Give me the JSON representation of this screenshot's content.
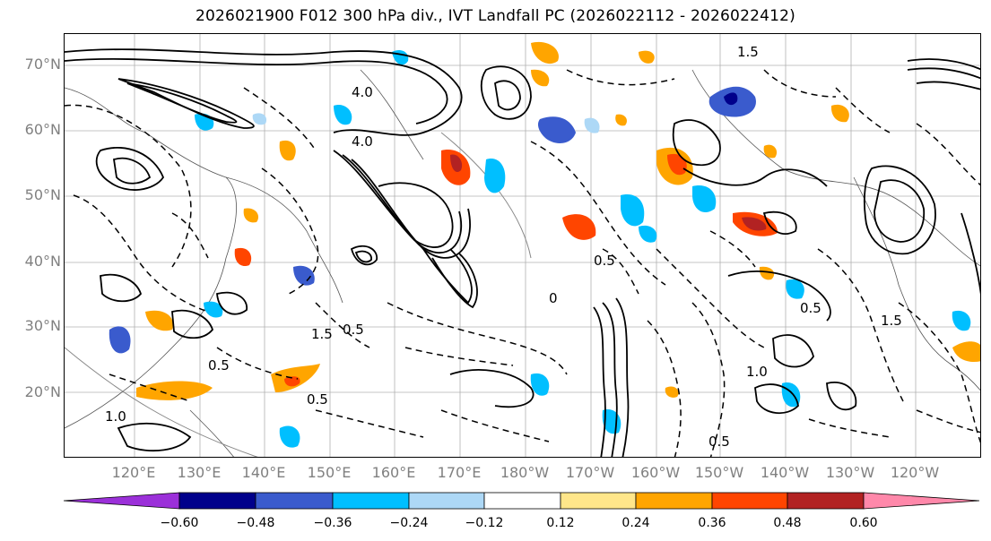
{
  "title": "2026021900 F012 300 hPa div., IVT Landfall PC (2026022112 - 2026022412)",
  "map": {
    "lat_labels": [
      "70°N",
      "60°N",
      "50°N",
      "40°N",
      "30°N",
      "20°N"
    ],
    "lon_labels": [
      "120°E",
      "130°E",
      "140°E",
      "150°E",
      "160°E",
      "170°E",
      "180°W",
      "170°W",
      "160°W",
      "150°W",
      "140°W",
      "130°W",
      "120°W"
    ],
    "contour_labels": [
      "4.0",
      "4.0",
      "1.5",
      "0.5",
      "0.5",
      "1.0",
      "1.5",
      "0.5",
      "0.5",
      "1.0",
      "0.5",
      "0.5",
      "0",
      "1.5"
    ],
    "grid": true
  },
  "colorbar": {
    "tick_labels": [
      "−0.60",
      "−0.48",
      "−0.36",
      "−0.24",
      "−0.12",
      "0.12",
      "0.24",
      "0.36",
      "0.48",
      "0.60"
    ],
    "colors": [
      "#9b30d9",
      "#00008b",
      "#3a5bcd",
      "#00bfff",
      "#add8f6",
      "#ffffff",
      "#ffe68a",
      "#ffa500",
      "#ff4500",
      "#b22222",
      "#ff88aa"
    ],
    "extend": "both"
  }
}
